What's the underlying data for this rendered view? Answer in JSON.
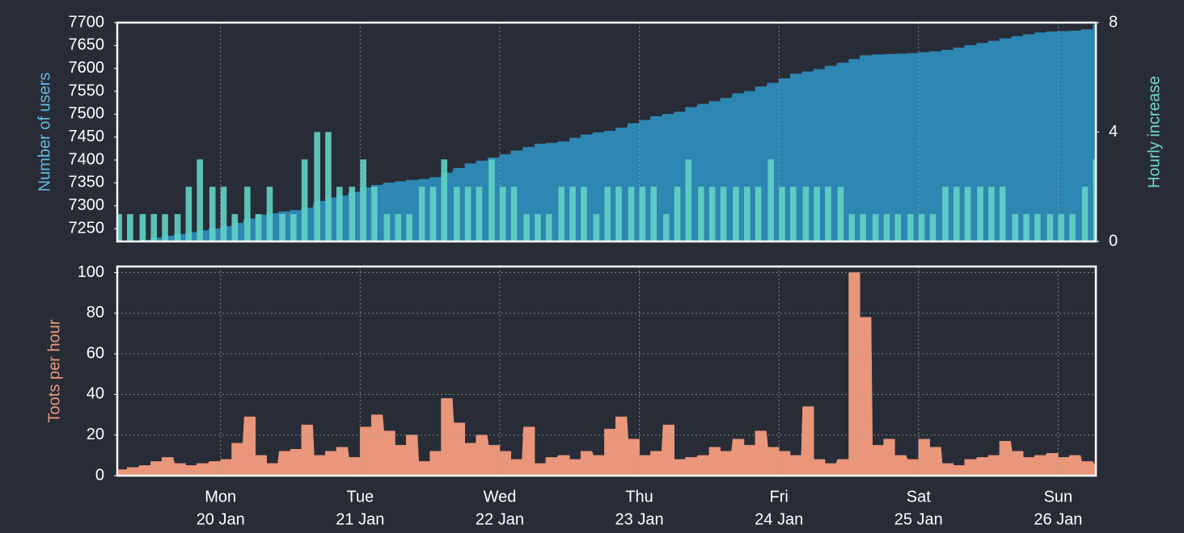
{
  "chart_data": [
    {
      "type": "area",
      "ylabel": "Number of users",
      "ylabel_color": "#63b9e3",
      "y2label": "Hourly increase",
      "y2label_color": "#6fd8c8",
      "x": [
        -0.75,
        -0.67,
        -0.58,
        -0.5,
        -0.42,
        -0.33,
        -0.25,
        -0.17,
        -0.08,
        0,
        0.08,
        0.17,
        0.25,
        0.33,
        0.42,
        0.5,
        0.58,
        0.67,
        0.75,
        0.83,
        0.92,
        1,
        1.08,
        1.17,
        1.25,
        1.33,
        1.42,
        1.5,
        1.58,
        1.67,
        1.75,
        1.83,
        1.92,
        2,
        2.08,
        2.17,
        2.25,
        2.33,
        2.42,
        2.5,
        2.58,
        2.67,
        2.75,
        2.83,
        2.92,
        3,
        3.08,
        3.17,
        3.25,
        3.33,
        3.42,
        3.5,
        3.58,
        3.67,
        3.75,
        3.83,
        3.92,
        4,
        4.08,
        4.17,
        4.25,
        4.33,
        4.42,
        4.5,
        4.58,
        4.67,
        4.75,
        4.83,
        4.92,
        5,
        5.08,
        5.17,
        5.25,
        5.33,
        5.42,
        5.5,
        5.58,
        5.67,
        5.75,
        5.83,
        5.92,
        6,
        6.08,
        6.17,
        6.25
      ],
      "xlim": [
        -0.74,
        6.27
      ],
      "xticks": [
        0,
        1,
        2,
        3,
        4,
        5,
        6
      ],
      "xgrid": true,
      "ygrid": false,
      "ylim": [
        7222,
        7700
      ],
      "yticks": [
        7250,
        7300,
        7350,
        7400,
        7450,
        7500,
        7550,
        7600,
        7650,
        7700
      ],
      "y2lim": [
        0,
        8
      ],
      "y2ticks": [
        0,
        4,
        8
      ],
      "series": [
        {
          "color": "#2e86b2",
          "values": [
            7215,
            7220,
            7225,
            7230,
            7234,
            7238,
            7242,
            7246,
            7250,
            7255,
            7262,
            7272,
            7280,
            7283,
            7287,
            7290,
            7295,
            7310,
            7318,
            7322,
            7330,
            7340,
            7345,
            7350,
            7353,
            7356,
            7358,
            7362,
            7372,
            7382,
            7392,
            7398,
            7405,
            7412,
            7420,
            7428,
            7435,
            7437,
            7440,
            7448,
            7455,
            7460,
            7463,
            7470,
            7480,
            7487,
            7495,
            7500,
            7505,
            7515,
            7522,
            7528,
            7535,
            7545,
            7550,
            7560,
            7568,
            7578,
            7588,
            7593,
            7598,
            7605,
            7612,
            7620,
            7628,
            7630,
            7631,
            7632,
            7633,
            7635,
            7637,
            7640,
            7645,
            7650,
            7655,
            7660,
            7665,
            7670,
            7674,
            7678,
            7680,
            7681,
            7682,
            7685,
            7695
          ]
        },
        {
          "type": "bar",
          "axis": "y2",
          "color": "#62d3c4",
          "values": [
            1,
            1,
            1,
            1,
            1,
            1,
            2,
            3,
            2,
            2,
            1,
            2,
            1,
            2,
            1,
            1,
            3,
            4,
            4,
            2,
            2,
            3,
            2,
            1,
            1,
            1,
            2,
            2,
            3,
            2,
            2,
            2,
            3,
            2,
            2,
            1,
            1,
            1,
            2,
            2,
            2,
            1,
            2,
            2,
            2,
            2,
            2,
            1,
            2,
            3,
            2,
            2,
            2,
            2,
            2,
            2,
            3,
            2,
            2,
            2,
            2,
            2,
            2,
            1,
            1,
            1,
            1,
            1,
            1,
            1,
            1,
            2,
            2,
            2,
            2,
            2,
            2,
            1,
            1,
            1,
            1,
            1,
            1,
            2,
            3
          ]
        }
      ]
    },
    {
      "type": "area",
      "ylabel": "Toots per hour",
      "ylabel_color": "#e8977c",
      "x": [
        -0.75,
        -0.67,
        -0.58,
        -0.5,
        -0.42,
        -0.33,
        -0.25,
        -0.17,
        -0.08,
        0,
        0.08,
        0.17,
        0.25,
        0.33,
        0.42,
        0.5,
        0.58,
        0.67,
        0.75,
        0.83,
        0.92,
        1,
        1.08,
        1.17,
        1.25,
        1.33,
        1.42,
        1.5,
        1.58,
        1.67,
        1.75,
        1.83,
        1.92,
        2,
        2.08,
        2.17,
        2.25,
        2.33,
        2.42,
        2.5,
        2.58,
        2.67,
        2.75,
        2.83,
        2.92,
        3,
        3.08,
        3.17,
        3.25,
        3.33,
        3.42,
        3.5,
        3.58,
        3.67,
        3.75,
        3.83,
        3.92,
        4,
        4.08,
        4.17,
        4.25,
        4.33,
        4.42,
        4.5,
        4.58,
        4.67,
        4.75,
        4.83,
        4.92,
        5,
        5.08,
        5.17,
        5.25,
        5.33,
        5.42,
        5.5,
        5.58,
        5.67,
        5.75,
        5.83,
        5.92,
        6,
        6.08,
        6.17,
        6.25
      ],
      "xlim": [
        -0.74,
        6.27
      ],
      "xticks": [
        {
          "value": 0,
          "label": [
            "Mon",
            "20 Jan"
          ]
        },
        {
          "value": 1,
          "label": [
            "Tue",
            "21 Jan"
          ]
        },
        {
          "value": 2,
          "label": [
            "Wed",
            "22 Jan"
          ]
        },
        {
          "value": 3,
          "label": [
            "Thu",
            "23 Jan"
          ]
        },
        {
          "value": 4,
          "label": [
            "Fri",
            "24 Jan"
          ]
        },
        {
          "value": 5,
          "label": [
            "Sat",
            "25 Jan"
          ]
        },
        {
          "value": 6,
          "label": [
            "Sun",
            "26 Jan"
          ]
        }
      ],
      "xgrid": true,
      "ygrid": true,
      "ylim": [
        0,
        103
      ],
      "yticks": [
        0,
        20,
        40,
        60,
        80,
        100
      ],
      "series": [
        {
          "color": "#e9967a",
          "values": [
            3,
            4,
            5,
            7,
            9,
            6,
            5,
            6,
            7,
            8,
            16,
            29,
            10,
            6,
            12,
            13,
            25,
            10,
            12,
            14,
            9,
            24,
            30,
            22,
            15,
            20,
            7,
            12,
            38,
            26,
            16,
            20,
            15,
            12,
            8,
            24,
            6,
            9,
            10,
            8,
            12,
            10,
            23,
            29,
            18,
            10,
            12,
            25,
            8,
            9,
            10,
            14,
            12,
            18,
            15,
            22,
            14,
            12,
            10,
            34,
            8,
            6,
            8,
            100,
            78,
            15,
            18,
            10,
            8,
            18,
            14,
            6,
            5,
            8,
            9,
            10,
            17,
            12,
            9,
            10,
            11,
            9,
            10,
            7,
            6
          ]
        }
      ]
    }
  ]
}
